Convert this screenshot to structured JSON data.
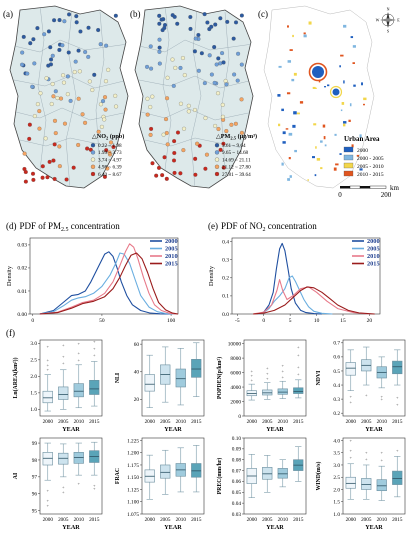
{
  "panel_a": {
    "letter": "(a)",
    "legend_title": "NO",
    "legend_sub": "2",
    "legend_unit": " (ppb)",
    "classes": [
      {
        "label": "0.22 ~ 1.98",
        "color": "#2c5aa0"
      },
      {
        "label": "1.99 ~ 3.73",
        "color": "#6f9fd8"
      },
      {
        "label": "3.74 ~ 4.97",
        "color": "#f3f0c8"
      },
      {
        "label": "4.98 ~ 6.39",
        "color": "#f4a462"
      },
      {
        "label": "6.40 ~ 8.67",
        "color": "#c8281e"
      }
    ]
  },
  "panel_b": {
    "letter": "(b)",
    "legend_title": "PM",
    "legend_sub": "2.5",
    "legend_unit": " (μg/m³)",
    "classes": [
      {
        "label": "3.61 ~ 9.64",
        "color": "#2c5aa0"
      },
      {
        "label": "9.65 ~ 14.68",
        "color": "#6f9fd8"
      },
      {
        "label": "14.69 ~ 21.11",
        "color": "#f3f0c8"
      },
      {
        "label": "21.12 ~ 27.80",
        "color": "#f4a462"
      },
      {
        "label": "27.81 ~ 39.64",
        "color": "#c8281e"
      }
    ]
  },
  "panel_c": {
    "letter": "(c)",
    "legend_title": "Urban Area",
    "classes": [
      {
        "label": "2000",
        "color": "#1f5fbf"
      },
      {
        "label": "2000 - 2005",
        "color": "#7fb6e0"
      },
      {
        "label": "2005 - 2010",
        "color": "#f2d64a"
      },
      {
        "label": "2010 - 2015",
        "color": "#e0551f"
      }
    ],
    "scale_labels": [
      "0",
      "200"
    ],
    "scale_unit": "km",
    "compass_labels": [
      "N",
      "E",
      "S",
      "W"
    ]
  },
  "panel_d": {
    "letter": "(d)",
    "title_pre": "PDF of PM",
    "title_sub": "2.5",
    "title_post": " concentration",
    "ylabel": "Density"
  },
  "panel_e": {
    "letter": "(e)",
    "title_pre": "PDF of NO",
    "title_sub": "2",
    "title_post": " concentration",
    "ylabel": "Density"
  },
  "panel_f": {
    "letter": "(f)"
  },
  "years_legend": [
    {
      "label": "2000",
      "color": "#1f4fa0"
    },
    {
      "label": "2005",
      "color": "#6aaee0"
    },
    {
      "label": "2010",
      "color": "#e87a8a"
    },
    {
      "label": "2015",
      "color": "#9a1c1c"
    }
  ],
  "box_colors": [
    "#eef5fa",
    "#cde3ee",
    "#9fcbdd",
    "#5aa4b8"
  ],
  "chart_data": [
    {
      "type": "line",
      "title": "PDF of PM2.5 concentration",
      "xlabel": "",
      "ylabel": "Density",
      "xlim": [
        -2,
        105
      ],
      "ylim": [
        0,
        0.033
      ],
      "xticks": [
        0,
        50,
        100
      ],
      "yticks": [
        0.0,
        0.01,
        0.02,
        0.03
      ],
      "ytick_labels": [
        "0.00",
        "0.01",
        "0.02",
        "0.03"
      ],
      "series": [
        {
          "name": "2000",
          "color": "#1f4fa0",
          "x": [
            5,
            15,
            22,
            28,
            33,
            38,
            42,
            47,
            52,
            55,
            58,
            61,
            64,
            68,
            72,
            78,
            85,
            92,
            100
          ],
          "y": [
            0.0,
            0.0015,
            0.005,
            0.008,
            0.0085,
            0.01,
            0.014,
            0.02,
            0.026,
            0.027,
            0.025,
            0.02,
            0.014,
            0.008,
            0.004,
            0.0015,
            0.0004,
            0.0001,
            0.0
          ]
        },
        {
          "name": "2005",
          "color": "#6aaee0",
          "x": [
            5,
            15,
            22,
            28,
            33,
            38,
            44,
            50,
            56,
            60,
            63,
            66,
            70,
            74,
            78,
            84,
            90,
            96,
            102
          ],
          "y": [
            0.0,
            0.001,
            0.0035,
            0.006,
            0.007,
            0.0075,
            0.009,
            0.012,
            0.017,
            0.022,
            0.0265,
            0.026,
            0.022,
            0.015,
            0.008,
            0.003,
            0.001,
            0.0002,
            0.0
          ]
        },
        {
          "name": "2010",
          "color": "#e87a8a",
          "x": [
            5,
            18,
            28,
            36,
            44,
            52,
            58,
            63,
            67,
            70,
            73,
            76,
            80,
            84,
            88,
            93,
            99,
            104
          ],
          "y": [
            0.0,
            0.0008,
            0.003,
            0.005,
            0.006,
            0.009,
            0.014,
            0.021,
            0.027,
            0.0305,
            0.029,
            0.024,
            0.016,
            0.009,
            0.004,
            0.0015,
            0.0003,
            0.0
          ]
        },
        {
          "name": "2015",
          "color": "#9a1c1c",
          "x": [
            5,
            18,
            28,
            36,
            44,
            52,
            58,
            63,
            67,
            71,
            75,
            79,
            83,
            87,
            91,
            96,
            101,
            105
          ],
          "y": [
            0.0,
            0.0006,
            0.0025,
            0.0045,
            0.0055,
            0.0075,
            0.011,
            0.016,
            0.021,
            0.0255,
            0.0265,
            0.024,
            0.018,
            0.011,
            0.005,
            0.0018,
            0.0004,
            0.0
          ]
        }
      ]
    },
    {
      "type": "line",
      "title": "PDF of NO2 concentration",
      "xlabel": "",
      "ylabel": "Density",
      "xlim": [
        -6,
        22
      ],
      "ylim": [
        0,
        0.42
      ],
      "xticks": [
        -5,
        0,
        5,
        10,
        15,
        20
      ],
      "yticks": [
        0.0,
        0.1,
        0.2,
        0.3,
        0.4
      ],
      "ytick_labels": [
        "0.0",
        "0.1",
        "0.2",
        "0.3",
        "0.4"
      ],
      "series": [
        {
          "name": "2000",
          "color": "#1f4fa0",
          "x": [
            -1,
            0,
            1,
            1.8,
            2.4,
            3,
            3.5,
            4,
            4.6,
            5.2,
            6,
            7,
            8,
            9.5,
            11
          ],
          "y": [
            0.0,
            0.01,
            0.05,
            0.12,
            0.25,
            0.36,
            0.39,
            0.35,
            0.25,
            0.14,
            0.06,
            0.02,
            0.008,
            0.002,
            0.0
          ]
        },
        {
          "name": "2005",
          "color": "#6aaee0",
          "x": [
            -1,
            0,
            1,
            2,
            3,
            4,
            4.8,
            5.4,
            6,
            6.8,
            7.6,
            8.5,
            9.5,
            11,
            13
          ],
          "y": [
            0.0,
            0.008,
            0.03,
            0.07,
            0.1,
            0.14,
            0.2,
            0.21,
            0.18,
            0.13,
            0.08,
            0.04,
            0.015,
            0.004,
            0.0
          ]
        },
        {
          "name": "2010",
          "color": "#e87a8a",
          "x": [
            -2,
            0,
            1.5,
            2.5,
            3,
            3.6,
            4.4,
            5.5,
            7,
            8.5,
            10,
            12,
            14,
            17,
            20
          ],
          "y": [
            0.0,
            0.01,
            0.05,
            0.13,
            0.19,
            0.13,
            0.08,
            0.1,
            0.14,
            0.15,
            0.12,
            0.07,
            0.03,
            0.008,
            0.0
          ]
        },
        {
          "name": "2015",
          "color": "#9a1c1c",
          "x": [
            -2,
            0,
            2,
            4,
            5.5,
            7,
            8.2,
            9.5,
            11,
            12.5,
            14,
            16,
            18,
            21
          ],
          "y": [
            0.0,
            0.005,
            0.02,
            0.05,
            0.09,
            0.13,
            0.15,
            0.145,
            0.12,
            0.085,
            0.05,
            0.02,
            0.006,
            0.0
          ]
        }
      ]
    },
    {
      "type": "box",
      "ylabel": "Ln(AREA(km²))",
      "xlabel": "YEAR",
      "categories": [
        "2000",
        "2005",
        "2010",
        "2015"
      ],
      "ylim": [
        0.8,
        3.1
      ],
      "yticks": [
        1.0,
        1.5,
        2.0,
        2.5,
        3.0
      ],
      "ytick_labels": [
        "1.0",
        "1.5",
        "2.0",
        "2.5",
        "3.0"
      ],
      "boxes": [
        {
          "min": 0.95,
          "q1": 1.2,
          "median": 1.35,
          "q3": 1.55,
          "max": 2.05,
          "outliers": [
            2.2,
            2.35,
            2.5,
            2.9
          ]
        },
        {
          "min": 1.0,
          "q1": 1.3,
          "median": 1.45,
          "q3": 1.68,
          "max": 2.2,
          "outliers": [
            2.4,
            2.6,
            2.95
          ]
        },
        {
          "min": 1.05,
          "q1": 1.38,
          "median": 1.55,
          "q3": 1.78,
          "max": 2.35,
          "outliers": [
            2.5,
            2.7,
            3.0
          ]
        },
        {
          "min": 1.1,
          "q1": 1.45,
          "median": 1.62,
          "q3": 1.88,
          "max": 2.45,
          "outliers": [
            2.65,
            2.85,
            3.05
          ]
        }
      ]
    },
    {
      "type": "box",
      "ylabel": "NLI",
      "xlabel": "YEAR",
      "categories": [
        "2000",
        "2005",
        "2010",
        "2015"
      ],
      "ylim": [
        8,
        63
      ],
      "yticks": [
        20,
        40,
        60
      ],
      "ytick_labels": [
        "20",
        "40",
        "60"
      ],
      "boxes": [
        {
          "min": 14,
          "q1": 26,
          "median": 31,
          "q3": 38,
          "max": 52,
          "outliers": []
        },
        {
          "min": 18,
          "q1": 31,
          "median": 38,
          "q3": 45,
          "max": 58,
          "outliers": []
        },
        {
          "min": 16,
          "q1": 29,
          "median": 35,
          "q3": 42,
          "max": 57,
          "outliers": []
        },
        {
          "min": 22,
          "q1": 36,
          "median": 42,
          "q3": 49,
          "max": 61,
          "outliers": []
        }
      ]
    },
    {
      "type": "box",
      "ylabel": "POPDEN(p/km²)",
      "xlabel": "YEAR",
      "categories": [
        "2000",
        "2005",
        "2010",
        "2015"
      ],
      "ylim": [
        0,
        10500
      ],
      "yticks": [
        0,
        2000,
        4000,
        6000,
        8000,
        10000
      ],
      "ytick_labels": [
        "0",
        "2000",
        "4000",
        "6000",
        "8000",
        "10000"
      ],
      "boxes": [
        {
          "min": 2200,
          "q1": 2800,
          "median": 3100,
          "q3": 3500,
          "max": 4400,
          "outliers": [
            5000,
            5600,
            6200
          ]
        },
        {
          "min": 2300,
          "q1": 2900,
          "median": 3200,
          "q3": 3600,
          "max": 4600,
          "outliers": [
            5200,
            5900,
            6600
          ]
        },
        {
          "min": 2400,
          "q1": 3000,
          "median": 3300,
          "q3": 3750,
          "max": 4800,
          "outliers": [
            5400,
            6200,
            7000
          ]
        },
        {
          "min": 2500,
          "q1": 3100,
          "median": 3400,
          "q3": 3900,
          "max": 5000,
          "outliers": [
            5800,
            6800,
            8400,
            9500
          ]
        }
      ]
    },
    {
      "type": "box",
      "ylabel": "NDVI",
      "xlabel": "YEAR",
      "categories": [
        "2000",
        "2005",
        "2010",
        "2015"
      ],
      "ylim": [
        0.18,
        0.72
      ],
      "yticks": [
        0.2,
        0.3,
        0.4,
        0.5,
        0.6,
        0.7
      ],
      "ytick_labels": [
        "0.2",
        "0.3",
        "0.4",
        "0.5",
        "0.6",
        "0.7"
      ],
      "boxes": [
        {
          "min": 0.36,
          "q1": 0.47,
          "median": 0.52,
          "q3": 0.56,
          "max": 0.65,
          "outliers": [
            0.28,
            0.32
          ]
        },
        {
          "min": 0.4,
          "q1": 0.5,
          "median": 0.54,
          "q3": 0.58,
          "max": 0.67,
          "outliers": [
            0.33
          ]
        },
        {
          "min": 0.38,
          "q1": 0.45,
          "median": 0.49,
          "q3": 0.53,
          "max": 0.6,
          "outliers": [
            0.3,
            0.32
          ]
        },
        {
          "min": 0.4,
          "q1": 0.48,
          "median": 0.53,
          "q3": 0.57,
          "max": 0.65,
          "outliers": [
            0.26,
            0.31
          ]
        }
      ]
    },
    {
      "type": "box",
      "ylabel": "AI",
      "xlabel": "YEAR",
      "categories": [
        "2000",
        "2005",
        "2010",
        "2015"
      ],
      "ylim": [
        94.8,
        99.3
      ],
      "yticks": [
        95,
        96,
        97,
        98,
        99
      ],
      "ytick_labels": [
        "95",
        "96",
        "97",
        "98",
        "99"
      ],
      "boxes": [
        {
          "min": 96.8,
          "q1": 97.7,
          "median": 98.1,
          "q3": 98.45,
          "max": 99.0,
          "outliers": [
            96.2,
            95.6,
            95.3
          ]
        },
        {
          "min": 97.0,
          "q1": 97.75,
          "median": 98.1,
          "q3": 98.4,
          "max": 98.95,
          "outliers": [
            96.4,
            96.1
          ]
        },
        {
          "min": 97.1,
          "q1": 97.8,
          "median": 98.15,
          "q3": 98.45,
          "max": 99.0,
          "outliers": [
            96.6
          ]
        },
        {
          "min": 97.1,
          "q1": 97.85,
          "median": 98.2,
          "q3": 98.55,
          "max": 99.05,
          "outliers": [
            96.5,
            96.3
          ]
        }
      ]
    },
    {
      "type": "box",
      "ylabel": "FRAC",
      "xlabel": "YEAR",
      "categories": [
        "2000",
        "2005",
        "2010",
        "2015"
      ],
      "ylim": [
        1.075,
        1.23
      ],
      "yticks": [
        1.075,
        1.1,
        1.125,
        1.15,
        1.175,
        1.2,
        1.225
      ],
      "ytick_labels": [
        "1.075",
        "1.100",
        "1.125",
        "1.150",
        "1.175",
        "1.200",
        "1.225"
      ],
      "boxes": [
        {
          "min": 1.105,
          "q1": 1.14,
          "median": 1.152,
          "q3": 1.165,
          "max": 1.195,
          "outliers": []
        },
        {
          "min": 1.115,
          "q1": 1.148,
          "median": 1.16,
          "q3": 1.175,
          "max": 1.205,
          "outliers": []
        },
        {
          "min": 1.12,
          "q1": 1.152,
          "median": 1.165,
          "q3": 1.178,
          "max": 1.21,
          "outliers": []
        },
        {
          "min": 1.12,
          "q1": 1.15,
          "median": 1.163,
          "q3": 1.178,
          "max": 1.215,
          "outliers": []
        }
      ]
    },
    {
      "type": "box",
      "ylabel": "PREC(mm/hr)",
      "xlabel": "YEAR",
      "categories": [
        "2000",
        "2005",
        "2010",
        "2015"
      ],
      "ylim": [
        0.03,
        0.1
      ],
      "yticks": [
        0.03,
        0.04,
        0.05,
        0.06,
        0.07,
        0.08,
        0.09,
        0.1
      ],
      "ytick_labels": [
        "0.03",
        "0.04",
        "0.05",
        "0.06",
        "0.07",
        "0.08",
        "0.09",
        "0.10"
      ],
      "boxes": [
        {
          "min": 0.045,
          "q1": 0.058,
          "median": 0.065,
          "q3": 0.072,
          "max": 0.085,
          "outliers": []
        },
        {
          "min": 0.05,
          "q1": 0.062,
          "median": 0.067,
          "q3": 0.073,
          "max": 0.084,
          "outliers": []
        },
        {
          "min": 0.055,
          "q1": 0.063,
          "median": 0.067,
          "q3": 0.072,
          "max": 0.08,
          "outliers": []
        },
        {
          "min": 0.06,
          "q1": 0.07,
          "median": 0.075,
          "q3": 0.08,
          "max": 0.092,
          "outliers": []
        }
      ]
    },
    {
      "type": "box",
      "ylabel": "WIND(m/s)",
      "xlabel": "YEAR",
      "categories": [
        "2000",
        "2005",
        "2010",
        "2015"
      ],
      "ylim": [
        1.0,
        4.1
      ],
      "yticks": [
        1.0,
        1.5,
        2.0,
        2.5,
        3.0,
        3.5,
        4.0
      ],
      "ytick_labels": [
        "1.0",
        "1.5",
        "2.0",
        "2.5",
        "3.0",
        "3.5",
        "4.0"
      ],
      "boxes": [
        {
          "min": 1.6,
          "q1": 2.05,
          "median": 2.25,
          "q3": 2.5,
          "max": 3.05,
          "outliers": [
            3.3,
            3.6,
            4.0
          ]
        },
        {
          "min": 1.6,
          "q1": 2.0,
          "median": 2.2,
          "q3": 2.45,
          "max": 3.0,
          "outliers": [
            3.25,
            3.5
          ]
        },
        {
          "min": 1.55,
          "q1": 1.95,
          "median": 2.15,
          "q3": 2.4,
          "max": 2.95,
          "outliers": [
            3.2,
            3.5
          ]
        },
        {
          "min": 1.7,
          "q1": 2.2,
          "median": 2.45,
          "q3": 2.75,
          "max": 3.35,
          "outliers": [
            3.6
          ]
        }
      ]
    }
  ]
}
